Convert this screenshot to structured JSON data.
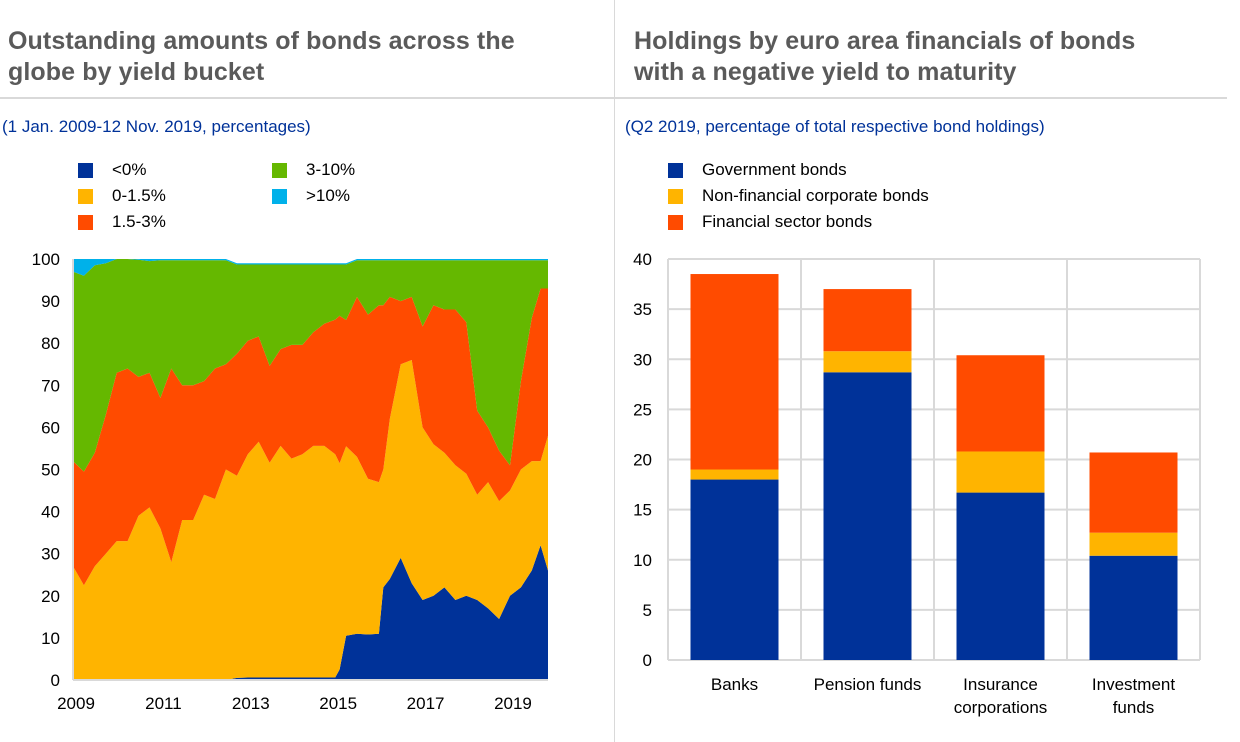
{
  "colors": {
    "negative": "#003299",
    "low": "#ffb400",
    "mid": "#ff4b00",
    "high": "#65b800",
    "very_high": "#00b1ea",
    "grid": "#d9d9d9",
    "title": "#5a5a5a",
    "subtitle": "#003299"
  },
  "left": {
    "title_line1": "Outstanding amounts of bonds across the",
    "title_line2": "globe by yield bucket",
    "subtitle": "(1 Jan. 2009-12 Nov. 2019, percentages)",
    "legend": [
      {
        "label": "<0%",
        "color": "#003299"
      },
      {
        "label": "0-1.5%",
        "color": "#ffb400"
      },
      {
        "label": "1.5-3%",
        "color": "#ff4b00"
      },
      {
        "label": "3-10%",
        "color": "#65b800"
      },
      {
        "label": ">10%",
        "color": "#00b1ea"
      }
    ]
  },
  "right": {
    "title_line1": "Holdings by euro area financials of bonds",
    "title_line2": "with a negative yield to maturity",
    "subtitle": "(Q2 2019, percentage of total respective bond holdings)",
    "legend": [
      {
        "label": "Government bonds",
        "color": "#003299"
      },
      {
        "label": "Non-financial corporate bonds",
        "color": "#ffb400"
      },
      {
        "label": "Financial sector bonds",
        "color": "#ff4b00"
      }
    ]
  },
  "chart_data": [
    {
      "type": "area",
      "stacked": true,
      "title": "Outstanding amounts of bonds across the globe by yield bucket",
      "subtitle": "(1 Jan. 2009-12 Nov. 2019, percentages)",
      "xlabel": "",
      "ylabel": "",
      "xlim": [
        2009.0,
        2019.87
      ],
      "ylim": [
        0,
        100
      ],
      "x_ticks": [
        "2009",
        "2011",
        "2013",
        "2015",
        "2017",
        "2019"
      ],
      "x_tick_values": [
        2009,
        2011,
        2013,
        2015,
        2017,
        2019
      ],
      "y_ticks": [
        0,
        10,
        20,
        30,
        40,
        50,
        60,
        70,
        80,
        90,
        100
      ],
      "grid": false,
      "legend_position": "top-left",
      "x": [
        2009.0,
        2009.25,
        2009.5,
        2009.75,
        2010.0,
        2010.25,
        2010.5,
        2010.75,
        2011.0,
        2011.25,
        2011.5,
        2011.75,
        2012.0,
        2012.25,
        2012.5,
        2012.75,
        2013.0,
        2013.25,
        2013.5,
        2013.75,
        2014.0,
        2014.25,
        2014.5,
        2014.75,
        2015.0,
        2015.1,
        2015.25,
        2015.5,
        2015.75,
        2016.0,
        2016.1,
        2016.25,
        2016.5,
        2016.75,
        2017.0,
        2017.25,
        2017.5,
        2017.75,
        2018.0,
        2018.25,
        2018.5,
        2018.75,
        2019.0,
        2019.25,
        2019.5,
        2019.7,
        2019.87
      ],
      "series": [
        {
          "name": "<0%",
          "color": "#003299",
          "values": [
            0,
            0,
            0,
            0,
            0,
            0,
            0,
            0,
            0,
            0,
            0,
            0,
            0,
            0,
            0,
            0.5,
            0.6,
            0.6,
            0.6,
            0.6,
            0.6,
            0.6,
            0.6,
            0.6,
            0.6,
            2.5,
            10.5,
            11.0,
            10.8,
            11.0,
            22.0,
            24.0,
            29.0,
            23.0,
            19.0,
            20.0,
            22.0,
            19.0,
            20.0,
            19.0,
            17.0,
            14.5,
            20.0,
            22.0,
            26.0,
            32.0,
            26.0
          ]
        },
        {
          "name": "0-1.5%",
          "color": "#ffb400",
          "values": [
            27.0,
            22.5,
            27.0,
            30.0,
            33.0,
            33.0,
            39.0,
            41.0,
            36.0,
            28.0,
            38.0,
            38.0,
            44.0,
            43.0,
            50.0,
            48.0,
            53.0,
            56.0,
            51.0,
            55.0,
            52.0,
            53.0,
            55.0,
            55.0,
            53.0,
            49.0,
            45.0,
            42.0,
            37.0,
            36.0,
            28.0,
            38.0,
            46.0,
            53.0,
            41.0,
            36.0,
            32.0,
            32.0,
            29.0,
            25.0,
            30.0,
            28.0,
            25.0,
            28.0,
            26.0,
            20.0,
            32.0
          ]
        },
        {
          "name": "1.5-3%",
          "color": "#ff4b00",
          "values": [
            25.0,
            27.0,
            27.0,
            33.0,
            40.0,
            41.0,
            33.0,
            32.0,
            31.0,
            46.0,
            32.0,
            32.0,
            27.0,
            31.0,
            25.0,
            29.0,
            27.0,
            25.0,
            23.0,
            23.0,
            27.0,
            26.0,
            27.0,
            29.0,
            32.0,
            35.0,
            30.0,
            38.0,
            39.0,
            42.0,
            39.0,
            29.0,
            15.0,
            15.0,
            24.0,
            33.0,
            34.0,
            37.0,
            36.0,
            20.0,
            13.0,
            12.0,
            6.0,
            21.0,
            34.0,
            41.0,
            35.0
          ]
        },
        {
          "name": "3-10%",
          "color": "#65b800",
          "values": [
            45.0,
            46.5,
            44.5,
            36.0,
            27.0,
            26.0,
            27.8,
            26.5,
            32.7,
            25.7,
            29.7,
            29.7,
            28.7,
            25.7,
            24.7,
            21.2,
            18.1,
            17.1,
            24.1,
            20.1,
            19.1,
            19.1,
            16.1,
            14.1,
            13.1,
            12.2,
            13.2,
            8.7,
            12.9,
            10.7,
            10.7,
            8.7,
            9.7,
            8.7,
            15.7,
            10.7,
            11.7,
            11.7,
            14.7,
            35.7,
            39.7,
            45.2,
            48.7,
            28.7,
            13.7,
            6.7,
            6.7
          ]
        },
        {
          "name": ">10%",
          "color": "#00b1ea",
          "values": [
            3.0,
            4.0,
            1.5,
            1.0,
            0.0,
            0.0,
            0.2,
            0.5,
            0.3,
            0.3,
            0.3,
            0.3,
            0.3,
            0.3,
            0.3,
            0.3,
            0.3,
            0.3,
            0.3,
            0.3,
            0.3,
            0.3,
            0.3,
            0.3,
            0.3,
            0.3,
            0.3,
            0.3,
            0.3,
            0.3,
            0.3,
            0.3,
            0.3,
            0.3,
            0.3,
            0.3,
            0.3,
            0.3,
            0.3,
            0.3,
            0.3,
            0.3,
            0.3,
            0.3,
            0.3,
            0.3,
            0.3
          ]
        }
      ]
    },
    {
      "type": "bar",
      "stacked": true,
      "title": "Holdings by euro area financials of bonds with a negative yield to maturity",
      "subtitle": "(Q2 2019, percentage of total respective bond holdings)",
      "xlabel": "",
      "ylabel": "",
      "ylim": [
        0,
        40
      ],
      "y_ticks": [
        0,
        5,
        10,
        15,
        20,
        25,
        30,
        35,
        40
      ],
      "grid": true,
      "legend_position": "top-left",
      "categories": [
        "Banks",
        "Pension funds",
        "Insurance corporations",
        "Investment funds"
      ],
      "category_lines": [
        [
          "Banks"
        ],
        [
          "Pension funds"
        ],
        [
          "Insurance",
          "corporations"
        ],
        [
          "Investment",
          "funds"
        ]
      ],
      "series": [
        {
          "name": "Government bonds",
          "color": "#003299",
          "values": [
            18.0,
            28.7,
            16.7,
            10.4
          ]
        },
        {
          "name": "Non-financial corporate bonds",
          "color": "#ffb400",
          "values": [
            1.0,
            2.1,
            4.1,
            2.3
          ]
        },
        {
          "name": "Financial sector bonds",
          "color": "#ff4b00",
          "values": [
            19.5,
            6.2,
            9.6,
            8.0
          ]
        }
      ]
    }
  ]
}
